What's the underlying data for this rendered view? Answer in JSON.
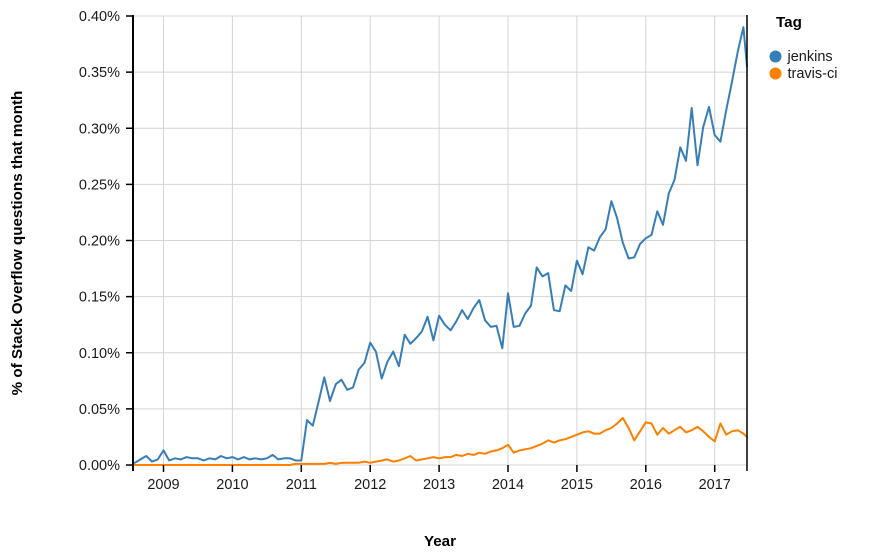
{
  "chart_data": {
    "type": "line",
    "title": "",
    "xlabel": "Year",
    "ylabel": "% of Stack Overflow questions that month",
    "legend_title": "Tag",
    "legend_position": "top-right",
    "grid": true,
    "x_unit": "month",
    "x_start": "2008-08",
    "x_end": "2017-07",
    "x_tick_labels": [
      "2009",
      "2010",
      "2011",
      "2012",
      "2013",
      "2014",
      "2015",
      "2016",
      "2017"
    ],
    "x_tick_years": [
      2009,
      2010,
      2011,
      2012,
      2013,
      2014,
      2015,
      2016,
      2017
    ],
    "y_tick_labels": [
      "0.00%",
      "0.05%",
      "0.10%",
      "0.15%",
      "0.20%",
      "0.25%",
      "0.30%",
      "0.35%",
      "0.40%"
    ],
    "y_tick_values": [
      0,
      0.05,
      0.1,
      0.15,
      0.2,
      0.25,
      0.3,
      0.35,
      0.4
    ],
    "ylim": [
      0,
      0.4
    ],
    "xlim_years": [
      2008.58,
      2017.47
    ],
    "grid_color": "#d4d4d4",
    "axis_color": "#000000",
    "series": [
      {
        "name": "jenkins",
        "color": "#377eb8",
        "values": [
          0.002,
          0.005,
          0.008,
          0.003,
          0.005,
          0.013,
          0.004,
          0.006,
          0.005,
          0.007,
          0.006,
          0.006,
          0.004,
          0.006,
          0.005,
          0.008,
          0.006,
          0.007,
          0.005,
          0.007,
          0.005,
          0.006,
          0.005,
          0.006,
          0.009,
          0.005,
          0.006,
          0.006,
          0.004,
          0.004,
          0.04,
          0.035,
          0.056,
          0.078,
          0.057,
          0.072,
          0.076,
          0.067,
          0.069,
          0.085,
          0.091,
          0.109,
          0.101,
          0.077,
          0.092,
          0.101,
          0.088,
          0.116,
          0.108,
          0.113,
          0.119,
          0.132,
          0.111,
          0.133,
          0.125,
          0.12,
          0.128,
          0.138,
          0.13,
          0.14,
          0.147,
          0.129,
          0.123,
          0.124,
          0.104,
          0.153,
          0.123,
          0.124,
          0.135,
          0.142,
          0.176,
          0.168,
          0.171,
          0.138,
          0.137,
          0.16,
          0.155,
          0.182,
          0.17,
          0.194,
          0.191,
          0.203,
          0.21,
          0.235,
          0.22,
          0.198,
          0.184,
          0.185,
          0.197,
          0.202,
          0.205,
          0.226,
          0.214,
          0.242,
          0.254,
          0.283,
          0.271,
          0.318,
          0.267,
          0.301,
          0.319,
          0.294,
          0.288,
          0.316,
          0.341,
          0.368,
          0.39,
          0.355
        ]
      },
      {
        "name": "travis-ci",
        "color": "#ff7f00",
        "values": [
          0,
          0,
          0,
          0,
          0,
          0,
          0,
          0,
          0,
          0,
          0,
          0,
          0,
          0,
          0,
          0,
          0,
          0,
          0,
          0,
          0,
          0,
          0,
          0,
          0,
          0,
          0,
          0,
          0.001,
          0.001,
          0.001,
          0.001,
          0.001,
          0.001,
          0.002,
          0.001,
          0.002,
          0.002,
          0.002,
          0.002,
          0.003,
          0.002,
          0.003,
          0.004,
          0.005,
          0.003,
          0.004,
          0.006,
          0.008,
          0.004,
          0.005,
          0.006,
          0.007,
          0.006,
          0.007,
          0.007,
          0.009,
          0.008,
          0.01,
          0.009,
          0.011,
          0.01,
          0.012,
          0.013,
          0.015,
          0.018,
          0.011,
          0.013,
          0.014,
          0.015,
          0.017,
          0.019,
          0.022,
          0.02,
          0.022,
          0.023,
          0.025,
          0.027,
          0.029,
          0.03,
          0.028,
          0.028,
          0.031,
          0.033,
          0.037,
          0.042,
          0.033,
          0.022,
          0.03,
          0.038,
          0.037,
          0.027,
          0.033,
          0.028,
          0.031,
          0.034,
          0.029,
          0.031,
          0.034,
          0.03,
          0.025,
          0.021,
          0.037,
          0.027,
          0.03,
          0.031,
          0.028,
          0.025
        ]
      }
    ]
  }
}
